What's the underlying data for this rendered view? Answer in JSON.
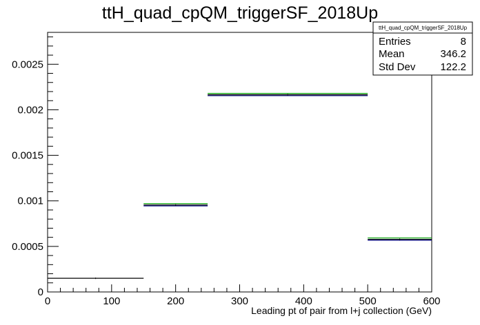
{
  "chart_data": {
    "type": "bar",
    "title": "ttH_quad_cpQM_triggerSF_2018Up",
    "xlabel": "Leading pt of pair from l+j collection (GeV)",
    "ylabel": "",
    "xlim": [
      0,
      600
    ],
    "ylim": [
      0,
      0.00285
    ],
    "x_ticks": [
      0,
      100,
      200,
      300,
      400,
      500,
      600
    ],
    "x_tick_labels": [
      "0",
      "100",
      "200",
      "300",
      "400",
      "500",
      "600"
    ],
    "y_ticks": [
      0,
      0.0005,
      0.001,
      0.0015,
      0.002,
      0.0025
    ],
    "y_tick_labels": [
      "0",
      "0.0005",
      "0.001",
      "0.0015",
      "0.002",
      "0.0025"
    ],
    "grid": false,
    "bins": [
      {
        "x_low": 0,
        "x_high": 150,
        "value": 0.00015
      },
      {
        "x_low": 150,
        "x_high": 250,
        "value": 0.000955
      },
      {
        "x_low": 250,
        "x_high": 500,
        "value": 0.002165
      },
      {
        "x_low": 500,
        "x_high": 600,
        "value": 0.000578
      }
    ],
    "overlays": [
      {
        "color": "#000080",
        "offset": -1e-05
      },
      {
        "color": "#00a000",
        "offset": 1.5e-05
      }
    ],
    "stats_box": {
      "name": "ttH_quad_cpQM_triggerSF_2018Up",
      "rows": [
        {
          "label": "Entries",
          "value": "8"
        },
        {
          "label": "Mean",
          "value": "346.2"
        },
        {
          "label": "Std Dev",
          "value": "122.2"
        }
      ]
    },
    "colors": {
      "main": "#000000"
    }
  }
}
